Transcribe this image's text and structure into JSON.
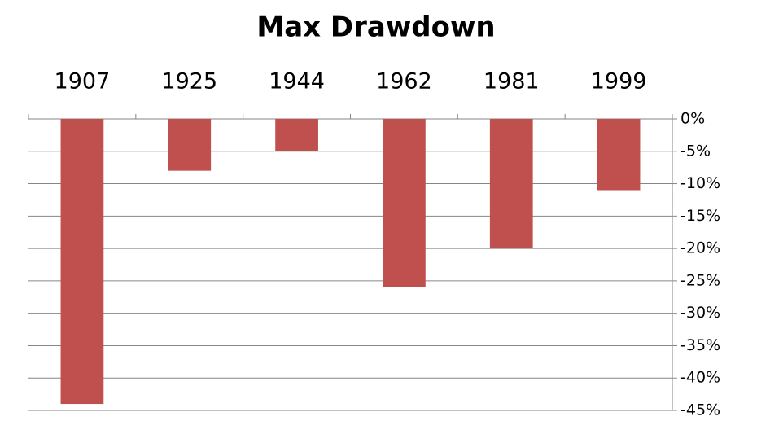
{
  "chart_data": {
    "type": "bar",
    "title": "Max Drawdown",
    "categories": [
      "1907",
      "1925",
      "1944",
      "1962",
      "1981",
      "1999"
    ],
    "values": [
      -44,
      -8,
      -5,
      -26,
      -20,
      -11
    ],
    "color": "#c0504d",
    "ylim": [
      -45,
      0
    ],
    "yticks": [
      {
        "value": 0,
        "label": "0%"
      },
      {
        "value": -5,
        "label": "-5%"
      },
      {
        "value": -10,
        "label": "-10%"
      },
      {
        "value": -15,
        "label": "-15%"
      },
      {
        "value": -20,
        "label": "-20%"
      },
      {
        "value": -25,
        "label": "-25%"
      },
      {
        "value": -30,
        "label": "-30%"
      },
      {
        "value": -35,
        "label": "-35%"
      },
      {
        "value": -40,
        "label": "-40%"
      },
      {
        "value": -45,
        "label": "-45%"
      }
    ],
    "grid": true
  }
}
